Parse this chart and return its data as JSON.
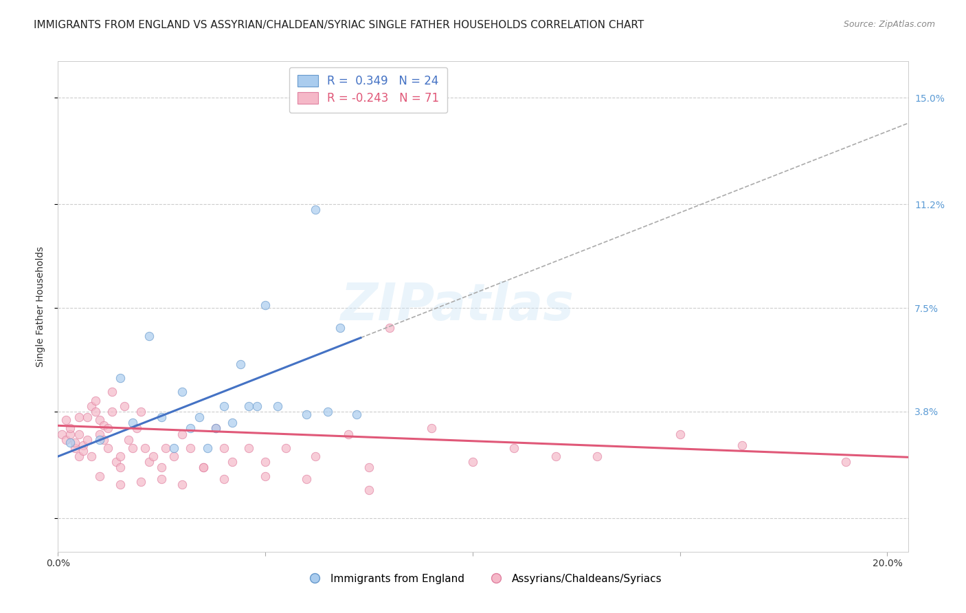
{
  "title": "IMMIGRANTS FROM ENGLAND VS ASSYRIAN/CHALDEAN/SYRIAC SINGLE FATHER HOUSEHOLDS CORRELATION CHART",
  "source": "Source: ZipAtlas.com",
  "ylabel": "Single Father Households",
  "yticks": [
    0.0,
    0.038,
    0.075,
    0.112,
    0.15
  ],
  "ytick_labels": [
    "",
    "3.8%",
    "7.5%",
    "11.2%",
    "15.0%"
  ],
  "xmin": 0.0,
  "xmax": 0.205,
  "ymin": -0.012,
  "ymax": 0.163,
  "watermark": "ZIPatlas",
  "legend_blue_r": "R =  0.349",
  "legend_blue_n": "N = 24",
  "legend_pink_r": "R = -0.243",
  "legend_pink_n": "N = 71",
  "blue_color": "#aaccee",
  "blue_edge_color": "#6699cc",
  "blue_line_color": "#4472c4",
  "pink_color": "#f5b8c8",
  "pink_edge_color": "#e080a0",
  "pink_line_color": "#e05878",
  "right_axis_color": "#5b9bd5",
  "blue_scatter_x": [
    0.003,
    0.01,
    0.015,
    0.018,
    0.022,
    0.025,
    0.028,
    0.03,
    0.032,
    0.034,
    0.036,
    0.038,
    0.04,
    0.042,
    0.044,
    0.046,
    0.048,
    0.05,
    0.053,
    0.06,
    0.062,
    0.065,
    0.068,
    0.072
  ],
  "blue_scatter_y": [
    0.027,
    0.028,
    0.05,
    0.034,
    0.065,
    0.036,
    0.025,
    0.045,
    0.032,
    0.036,
    0.025,
    0.032,
    0.04,
    0.034,
    0.055,
    0.04,
    0.04,
    0.076,
    0.04,
    0.037,
    0.11,
    0.038,
    0.068,
    0.037
  ],
  "pink_scatter_x": [
    0.001,
    0.002,
    0.002,
    0.003,
    0.003,
    0.004,
    0.004,
    0.005,
    0.005,
    0.005,
    0.006,
    0.006,
    0.007,
    0.007,
    0.008,
    0.008,
    0.009,
    0.009,
    0.01,
    0.01,
    0.011,
    0.011,
    0.012,
    0.012,
    0.013,
    0.013,
    0.014,
    0.015,
    0.015,
    0.016,
    0.017,
    0.018,
    0.019,
    0.02,
    0.021,
    0.022,
    0.023,
    0.025,
    0.026,
    0.028,
    0.03,
    0.032,
    0.035,
    0.038,
    0.04,
    0.042,
    0.046,
    0.05,
    0.055,
    0.062,
    0.07,
    0.075,
    0.08,
    0.09,
    0.1,
    0.11,
    0.12,
    0.13,
    0.15,
    0.165,
    0.19,
    0.01,
    0.015,
    0.02,
    0.025,
    0.03,
    0.035,
    0.04,
    0.05,
    0.06,
    0.075
  ],
  "pink_scatter_y": [
    0.03,
    0.035,
    0.028,
    0.03,
    0.032,
    0.025,
    0.027,
    0.03,
    0.022,
    0.036,
    0.026,
    0.024,
    0.028,
    0.036,
    0.022,
    0.04,
    0.038,
    0.042,
    0.03,
    0.035,
    0.033,
    0.028,
    0.025,
    0.032,
    0.038,
    0.045,
    0.02,
    0.022,
    0.018,
    0.04,
    0.028,
    0.025,
    0.032,
    0.038,
    0.025,
    0.02,
    0.022,
    0.018,
    0.025,
    0.022,
    0.03,
    0.025,
    0.018,
    0.032,
    0.025,
    0.02,
    0.025,
    0.02,
    0.025,
    0.022,
    0.03,
    0.018,
    0.068,
    0.032,
    0.02,
    0.025,
    0.022,
    0.022,
    0.03,
    0.026,
    0.02,
    0.015,
    0.012,
    0.013,
    0.014,
    0.012,
    0.018,
    0.014,
    0.015,
    0.014,
    0.01
  ],
  "blue_line_intercept": 0.022,
  "blue_line_slope": 0.58,
  "blue_line_end_x": 0.073,
  "pink_line_intercept": 0.033,
  "pink_line_slope": -0.055,
  "background_color": "#ffffff",
  "grid_color": "#cccccc",
  "title_fontsize": 11,
  "axis_label_fontsize": 10,
  "tick_fontsize": 10,
  "scatter_size": 80,
  "scatter_alpha": 0.7,
  "line_width": 2.2
}
